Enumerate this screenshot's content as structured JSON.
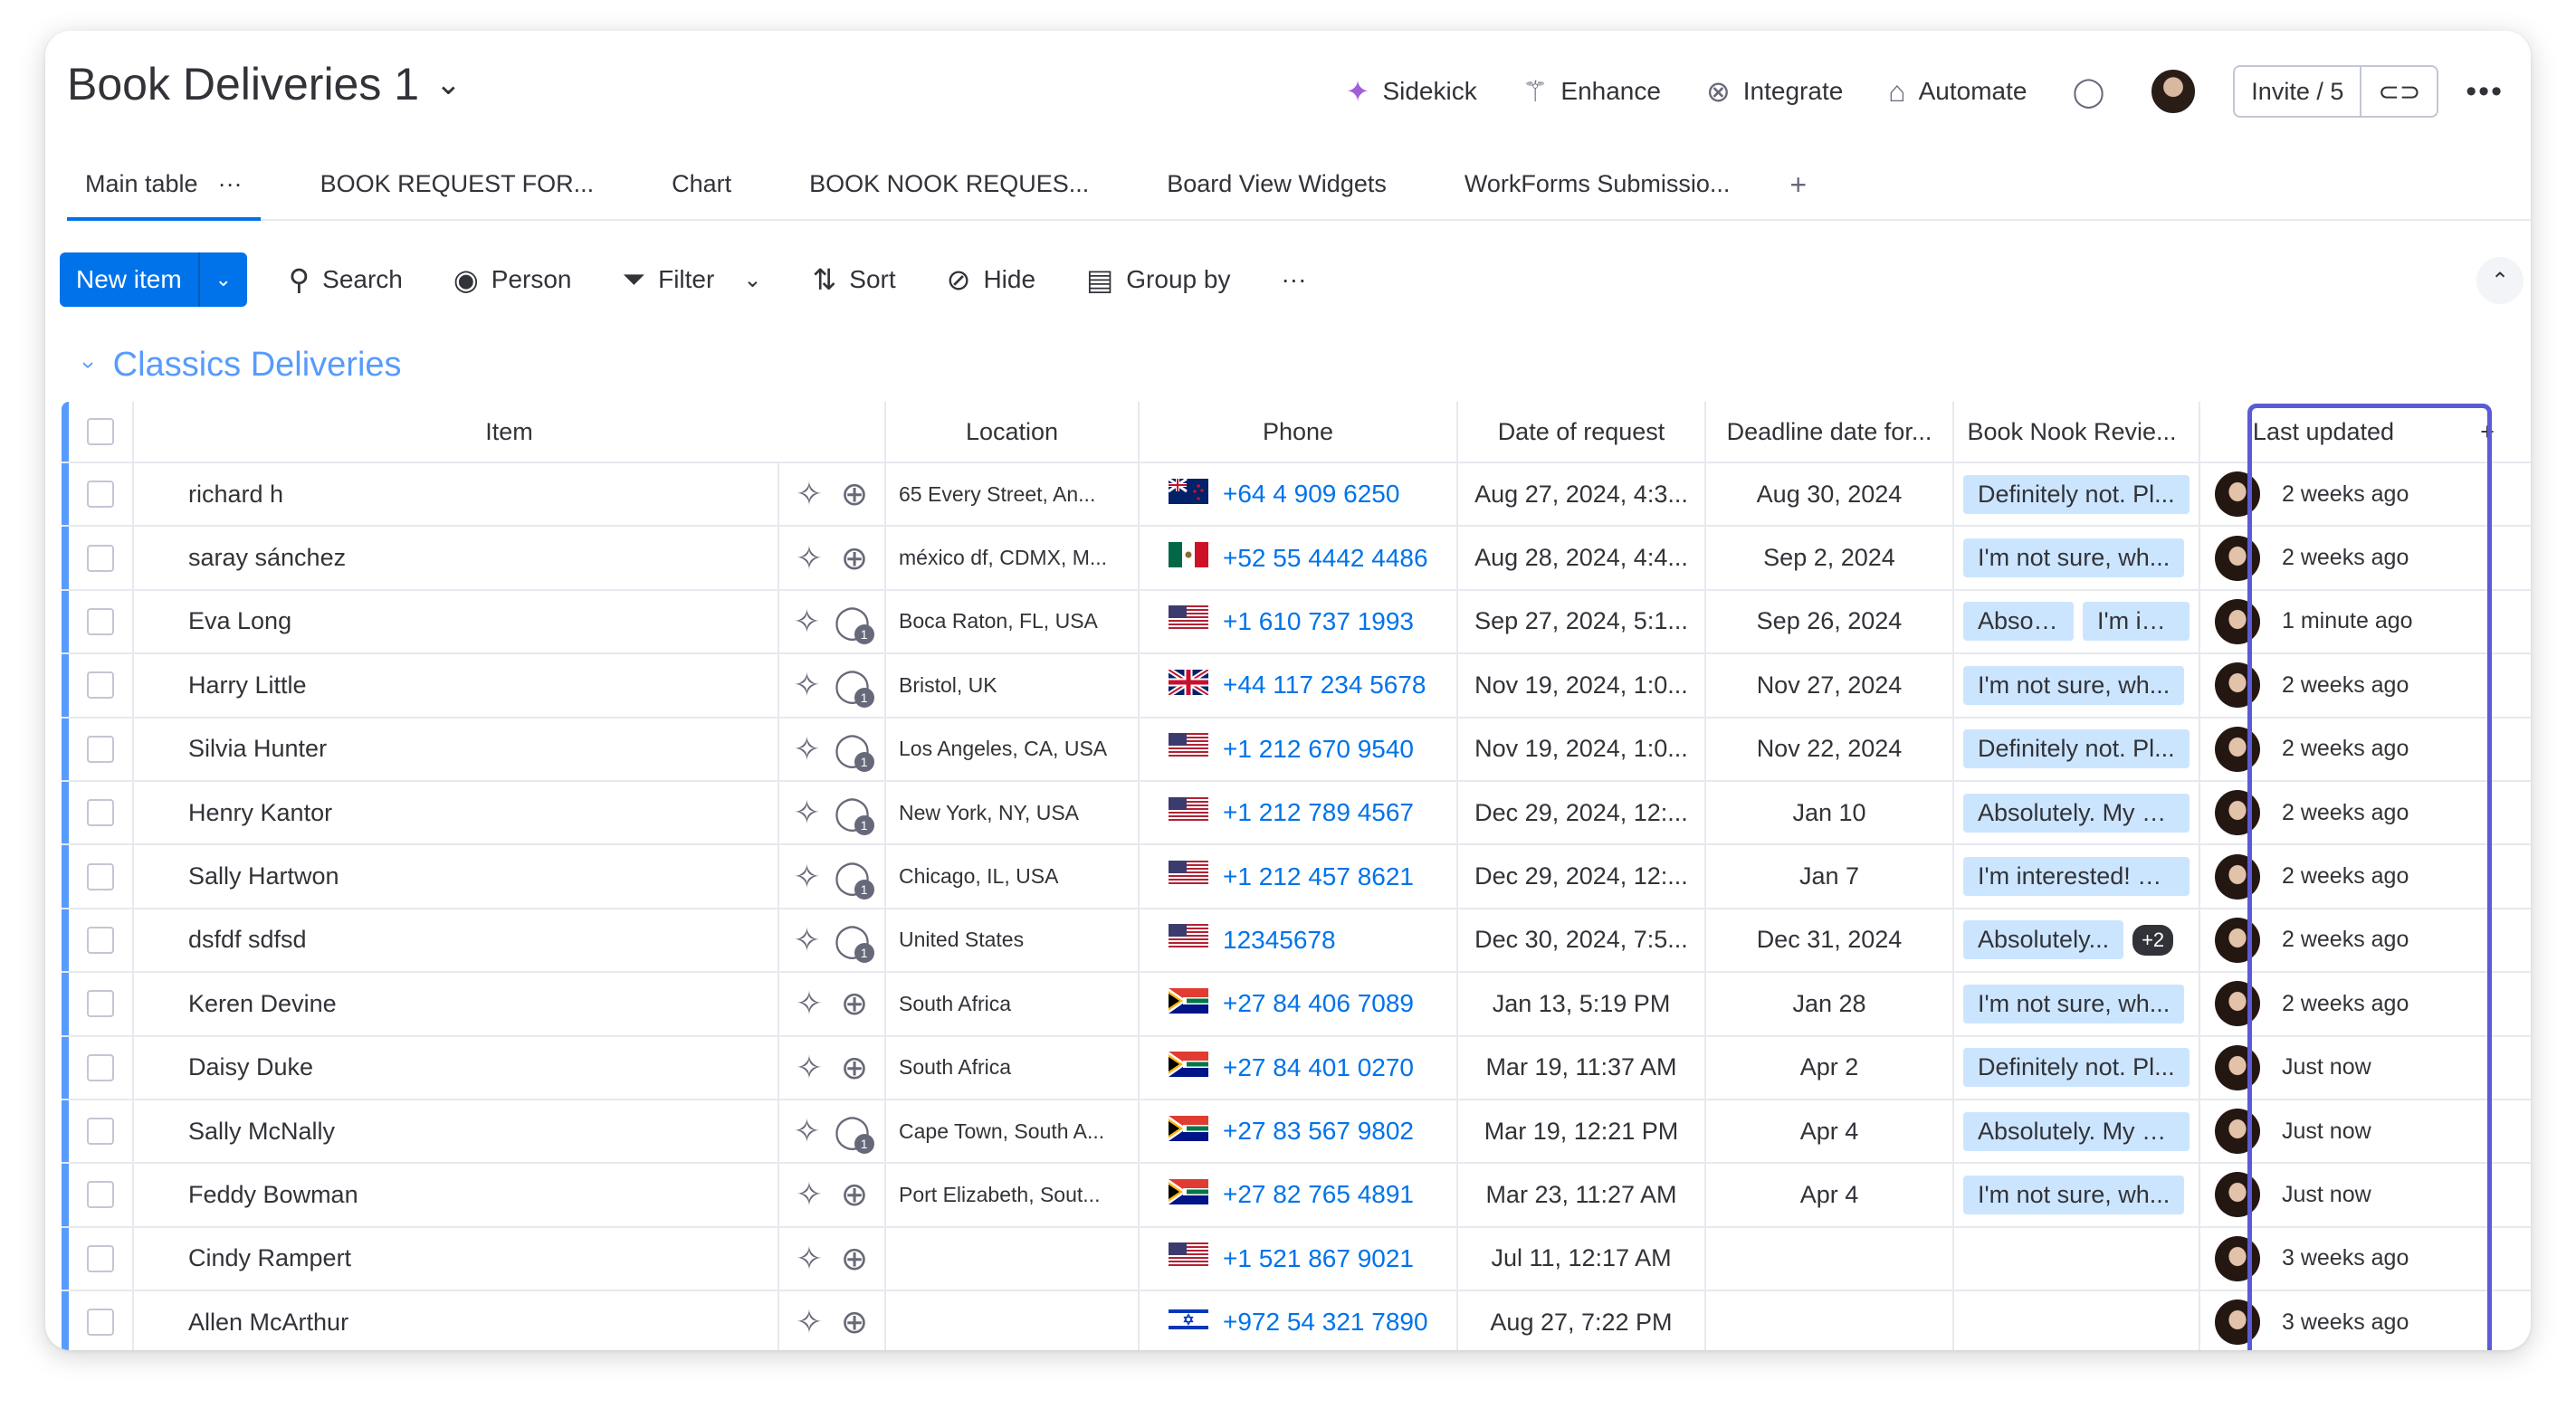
{
  "board": {
    "title": "Book Deliveries 1"
  },
  "top_actions": [
    {
      "label": "Sidekick",
      "icon": "sparkle-icon"
    },
    {
      "label": "Enhance",
      "icon": "magic-wand-icon"
    },
    {
      "label": "Integrate",
      "icon": "integrate-icon"
    },
    {
      "label": "Automate",
      "icon": "robot-icon"
    }
  ],
  "invite": {
    "label": "Invite / 5"
  },
  "tabs": [
    "Main table",
    "BOOK REQUEST FOR...",
    "Chart",
    "BOOK NOOK REQUES...",
    "Board View Widgets",
    "WorkForms Submissio..."
  ],
  "toolbar": {
    "new_item": "New item",
    "search": "Search",
    "person": "Person",
    "filter": "Filter",
    "sort": "Sort",
    "hide": "Hide",
    "group_by": "Group by"
  },
  "group": {
    "title": "Classics Deliveries",
    "color": "#579bfc"
  },
  "columns": {
    "item": "Item",
    "location": "Location",
    "phone": "Phone",
    "date": "Date of request",
    "deadline": "Deadline date for...",
    "review": "Book Nook Revie...",
    "updated": "Last updated"
  },
  "rows": [
    {
      "item": "richard h",
      "updates": 0,
      "location": "65 Every Street, An...",
      "flag": "nz",
      "phone": "+64 4 909 6250",
      "date": "Aug 27, 2024, 4:3...",
      "deadline": "Aug 30, 2024",
      "review": [
        "Definitely not. Pl..."
      ],
      "more": "",
      "updated": "2 weeks ago"
    },
    {
      "item": "saray sánchez",
      "updates": 0,
      "location": "méxico df, CDMX, M...",
      "flag": "mx",
      "phone": "+52 55 4442 4486",
      "date": "Aug 28, 2024, 4:4...",
      "deadline": "Sep 2, 2024",
      "review": [
        "I'm not sure, wh..."
      ],
      "more": "",
      "updated": "2 weeks ago"
    },
    {
      "item": "Eva Long",
      "updates": 1,
      "location": "Boca Raton, FL, USA",
      "flag": "us",
      "phone": "+1 610 737 1993",
      "date": "Sep 27, 2024, 5:1...",
      "deadline": "Sep 26, 2024",
      "review": [
        "Absol...",
        "I'm in..."
      ],
      "more": "",
      "updated": "1 minute ago"
    },
    {
      "item": "Harry Little",
      "updates": 1,
      "location": "Bristol, UK",
      "flag": "uk",
      "phone": "+44 117 234 5678",
      "date": "Nov 19, 2024, 1:0...",
      "deadline": "Nov 27, 2024",
      "review": [
        "I'm not sure, wh..."
      ],
      "more": "",
      "updated": "2 weeks ago"
    },
    {
      "item": "Silvia Hunter",
      "updates": 1,
      "location": "Los Angeles, CA, USA",
      "flag": "us",
      "phone": "+1 212 670 9540",
      "date": "Nov 19, 2024, 1:0...",
      "deadline": "Nov 22, 2024",
      "review": [
        "Definitely not. Pl..."
      ],
      "more": "",
      "updated": "2 weeks ago"
    },
    {
      "item": "Henry Kantor",
      "updates": 1,
      "location": "New York, NY, USA",
      "flag": "us",
      "phone": "+1 212 789 4567",
      "date": "Dec 29, 2024, 12:...",
      "deadline": "Jan 10",
      "review": [
        "Absolutely. My d..."
      ],
      "more": "",
      "updated": "2 weeks ago"
    },
    {
      "item": "Sally Hartwon",
      "updates": 1,
      "location": "Chicago, IL, USA",
      "flag": "us",
      "phone": "+1 212 457 8621",
      "date": "Dec 29, 2024, 12:...",
      "deadline": "Jan 7",
      "review": [
        "I'm interested! C..."
      ],
      "more": "",
      "updated": "2 weeks ago"
    },
    {
      "item": "dsfdf sdfsd",
      "updates": 1,
      "location": "United States",
      "flag": "us",
      "phone": "12345678",
      "date": "Dec 30, 2024, 7:5...",
      "deadline": "Dec 31, 2024",
      "review": [
        "Absolutely..."
      ],
      "more": "+2",
      "updated": "2 weeks ago"
    },
    {
      "item": "Keren Devine",
      "updates": 0,
      "location": "South Africa",
      "flag": "za",
      "phone": "+27 84 406 7089",
      "date": "Jan 13, 5:19 PM",
      "deadline": "Jan 28",
      "review": [
        "I'm not sure, wh..."
      ],
      "more": "",
      "updated": "2 weeks ago"
    },
    {
      "item": "Daisy Duke",
      "updates": 0,
      "location": "South Africa",
      "flag": "za",
      "phone": "+27 84 401 0270",
      "date": "Mar 19, 11:37 AM",
      "deadline": "Apr 2",
      "review": [
        "Definitely not. Pl..."
      ],
      "more": "",
      "updated": "Just now"
    },
    {
      "item": "Sally McNally",
      "updates": 1,
      "location": "Cape Town, South A...",
      "flag": "za",
      "phone": "+27 83 567 9802",
      "date": "Mar 19, 12:21 PM",
      "deadline": "Apr 4",
      "review": [
        "Absolutely. My d..."
      ],
      "more": "",
      "updated": "Just now"
    },
    {
      "item": "Feddy Bowman",
      "updates": 0,
      "location": "Port Elizabeth, Sout...",
      "flag": "za",
      "phone": "+27 82 765 4891",
      "date": "Mar 23, 11:27 AM",
      "deadline": "Apr 4",
      "review": [
        "I'm not sure, wh..."
      ],
      "more": "",
      "updated": "Just now"
    },
    {
      "item": "Cindy Rampert",
      "updates": 0,
      "location": "",
      "flag": "us",
      "phone": "+1 521 867 9021",
      "date": "Jul 11, 12:17 AM",
      "deadline": "",
      "review": [],
      "more": "",
      "updated": "3 weeks ago"
    },
    {
      "item": "Allen McArthur",
      "updates": 0,
      "location": "",
      "flag": "il",
      "phone": "+972 54 321 7890",
      "date": "Aug 27, 7:22 PM",
      "deadline": "",
      "review": [],
      "more": "",
      "updated": "3 weeks ago"
    }
  ],
  "colors": {
    "accent": "#0073ea",
    "group": "#579bfc",
    "tag": "#cce5ff",
    "highlight": "#5b5bd6"
  }
}
